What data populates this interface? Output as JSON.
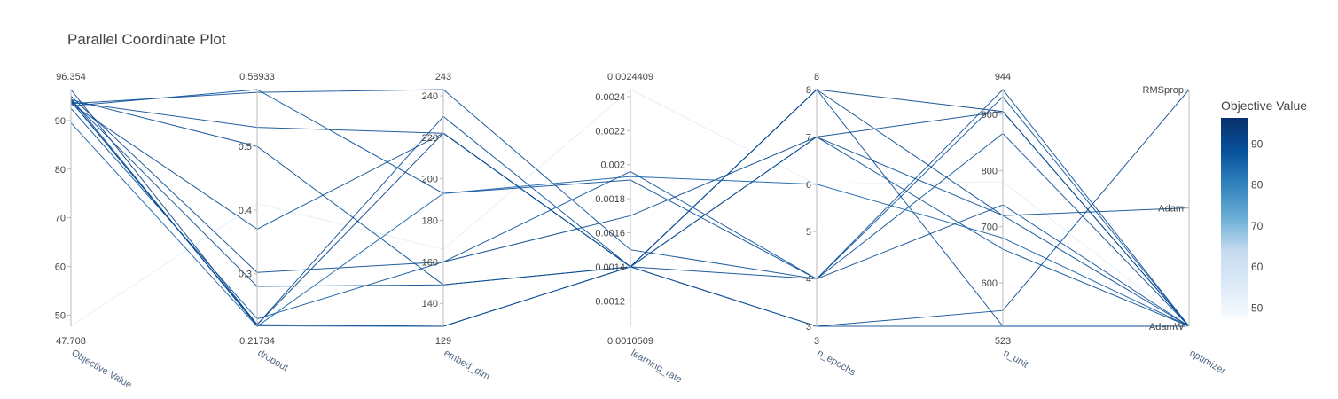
{
  "chart_data": {
    "type": "parallel_coordinates",
    "title": "Parallel Coordinate Plot",
    "dimensions": [
      {
        "label": "Objective Value",
        "range": [
          47.708,
          96.354
        ],
        "range_labels": [
          "47.708",
          "96.354"
        ],
        "ticks": [
          50,
          60,
          70,
          80,
          90
        ],
        "tick_labels": [
          "50",
          "60",
          "70",
          "80",
          "90"
        ]
      },
      {
        "label": "dropout",
        "range": [
          0.21734,
          0.58933
        ],
        "range_labels": [
          "0.21734",
          "0.58933"
        ],
        "ticks": [
          0.3,
          0.4,
          0.5
        ],
        "tick_labels": [
          "0.3",
          "0.4",
          "0.5"
        ]
      },
      {
        "label": "embed_dim",
        "range": [
          129,
          243
        ],
        "range_labels": [
          "129",
          "243"
        ],
        "ticks": [
          140,
          160,
          180,
          200,
          220,
          240
        ],
        "tick_labels": [
          "140",
          "160",
          "180",
          "200",
          "220",
          "240"
        ]
      },
      {
        "label": "learning_rate",
        "range": [
          0.0010509,
          0.0024409
        ],
        "range_labels": [
          "0.0010509",
          "0.0024409"
        ],
        "ticks": [
          0.0012,
          0.0014,
          0.0016,
          0.0018,
          0.002,
          0.0022,
          0.0024
        ],
        "tick_labels": [
          "0.0012",
          "0.0014",
          "0.0016",
          "0.0018",
          "0.002",
          "0.0022",
          "0.0024"
        ]
      },
      {
        "label": "n_epochs",
        "range": [
          3,
          8
        ],
        "range_labels": [
          "3",
          "8"
        ],
        "ticks": [
          3,
          4,
          5,
          6,
          7,
          8
        ],
        "tick_labels": [
          "3",
          "4",
          "5",
          "6",
          "7",
          "8"
        ]
      },
      {
        "label": "n_unit",
        "range": [
          523,
          944
        ],
        "range_labels": [
          "523",
          "944"
        ],
        "ticks": [
          600,
          700,
          800,
          900
        ],
        "tick_labels": [
          "600",
          "700",
          "800",
          "900"
        ]
      },
      {
        "label": "optimizer",
        "range": [
          0,
          2
        ],
        "range_labels": [
          "",
          ""
        ],
        "ticks": [
          0,
          1,
          2
        ],
        "tick_labels": [
          "AdamW",
          "Adam",
          "RMSprop"
        ]
      }
    ],
    "lines": [
      [
        47.708,
        0.41,
        166,
        0.0024409,
        6,
        780,
        0
      ],
      [
        96.354,
        0.22,
        222,
        0.0014,
        8,
        905,
        0
      ],
      [
        95.0,
        0.302,
        160,
        0.0017,
        7,
        905,
        0
      ],
      [
        94.5,
        0.218,
        129,
        0.0014,
        3,
        523,
        0
      ],
      [
        94.3,
        0.5,
        149,
        0.0014,
        3,
        551,
        2
      ],
      [
        94.0,
        0.22,
        230,
        0.0014,
        4,
        866,
        0
      ],
      [
        93.5,
        0.585,
        243,
        0.0015,
        4,
        739,
        0
      ],
      [
        93.0,
        0.58933,
        193,
        0.00191,
        4,
        944,
        0
      ],
      [
        92.5,
        0.229,
        160,
        0.00196,
        4,
        931,
        0
      ],
      [
        93.5,
        0.37,
        222,
        0.0014,
        8,
        720,
        1
      ],
      [
        94.0,
        0.22,
        129,
        0.0014,
        8,
        523,
        0
      ],
      [
        93.8,
        0.53,
        222,
        0.0014,
        7,
        660,
        0
      ],
      [
        94.2,
        0.28,
        149,
        0.0014,
        7,
        720,
        0
      ],
      [
        89.5,
        0.217,
        193,
        0.00193,
        6,
        680,
        0
      ]
    ],
    "colorbar": {
      "title": "Objective Value",
      "range": [
        47.708,
        96.354
      ],
      "ticks": [
        50,
        60,
        70,
        80,
        90
      ],
      "tick_labels": [
        "50",
        "60",
        "70",
        "80",
        "90"
      ]
    },
    "colorscale": [
      "#f7fbff",
      "#dbe9f6",
      "#c6dbef",
      "#6baed6",
      "#3182bd",
      "#08519c",
      "#08306b"
    ]
  }
}
